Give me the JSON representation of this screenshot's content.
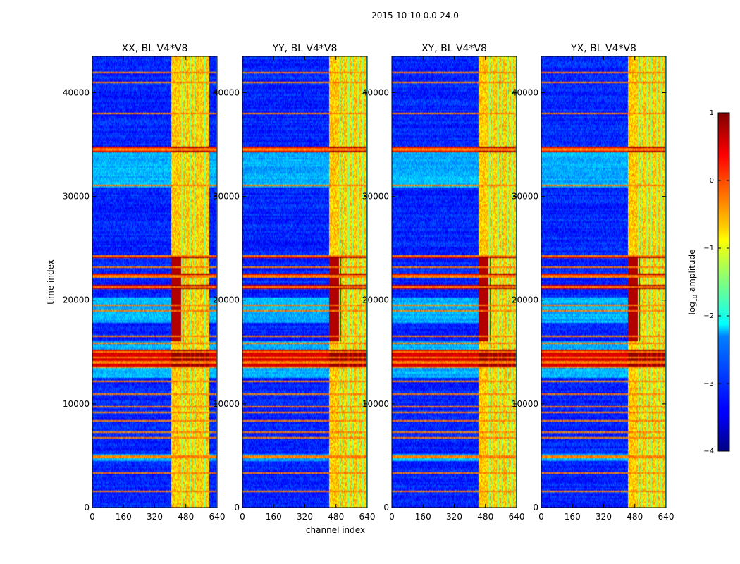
{
  "figure": {
    "suptitle": "2015-10-10 0.0-24.0",
    "xlabel": "channel index",
    "ylabel": "time index"
  },
  "chart_data": [
    {
      "type": "heatmap",
      "title": "XX, BL V4*V8",
      "xlim": [
        0,
        640
      ],
      "ylim": [
        0,
        43500
      ],
      "xticks": [
        0,
        160,
        320,
        480,
        640
      ],
      "yticks": [
        0,
        10000,
        20000,
        30000,
        40000
      ],
      "xticklabels": [
        "0",
        "160",
        "320",
        "480",
        "640"
      ],
      "yticklabels": [
        "0",
        "10000",
        "20000",
        "30000",
        "40000"
      ],
      "band_shift": 0,
      "xy_style": false
    },
    {
      "type": "heatmap",
      "title": "YY, BL V4*V8",
      "xlim": [
        0,
        640
      ],
      "ylim": [
        0,
        43500
      ],
      "xticks": [
        0,
        160,
        320,
        480,
        640
      ],
      "yticks": [
        0,
        10000,
        20000,
        30000,
        40000
      ],
      "xticklabels": [
        "0",
        "160",
        "320",
        "480",
        "640"
      ],
      "yticklabels": [
        "0",
        "10000",
        "20000",
        "30000",
        "40000"
      ],
      "band_shift": 40,
      "xy_style": false
    },
    {
      "type": "heatmap",
      "title": "XY, BL V4*V8",
      "xlim": [
        0,
        640
      ],
      "ylim": [
        0,
        43500
      ],
      "xticks": [
        0,
        160,
        320,
        480,
        640
      ],
      "yticks": [
        0,
        10000,
        20000,
        30000,
        40000
      ],
      "xticklabels": [
        "0",
        "160",
        "320",
        "480",
        "640"
      ],
      "yticklabels": [
        "0",
        "10000",
        "20000",
        "30000",
        "40000"
      ],
      "band_shift": 40,
      "xy_style": true
    },
    {
      "type": "heatmap",
      "title": "YX, BL V4*V8",
      "xlim": [
        0,
        640
      ],
      "ylim": [
        0,
        43500
      ],
      "xticks": [
        0,
        160,
        320,
        480,
        640
      ],
      "yticks": [
        0,
        10000,
        20000,
        30000,
        40000
      ],
      "xticklabels": [
        "0",
        "160",
        "320",
        "480",
        "640"
      ],
      "yticklabels": [
        "0",
        "10000",
        "20000",
        "30000",
        "40000"
      ],
      "band_shift": 40,
      "xy_style": true
    }
  ],
  "colorbar": {
    "label_prefix": "log",
    "label_sub": "10",
    "label_suffix": " amplitude",
    "range": [
      -4,
      1
    ],
    "ticks": [
      1,
      0,
      -1,
      -2,
      -3,
      -4
    ],
    "ticklabels": [
      "1",
      "0",
      "−1",
      "−2",
      "−3",
      "−4"
    ],
    "colormap": "jet"
  },
  "features": {
    "rfi_channel_bands": [
      [
        405,
        440
      ],
      [
        440,
        455
      ],
      [
        462,
        472
      ],
      [
        478,
        500
      ],
      [
        508,
        520
      ],
      [
        528,
        548
      ],
      [
        555,
        570
      ],
      [
        582,
        600
      ]
    ],
    "rfi_time_lines": [
      1600,
      3300,
      4800,
      5000,
      6700,
      7300,
      8400,
      9200,
      9700,
      11000,
      12200,
      13500,
      14000,
      14500,
      15000,
      15800,
      16500,
      19000,
      19500,
      21300,
      22200,
      22400,
      23200,
      24200,
      31000,
      34400,
      34600,
      38000,
      41000,
      42000
    ],
    "bright_time_spans": [
      [
        13400,
        15200
      ],
      [
        34200,
        34800
      ],
      [
        21100,
        21500
      ],
      [
        22100,
        22600
      ],
      [
        24100,
        24400
      ]
    ],
    "elevated_time_spans": [
      [
        30800,
        34200
      ],
      [
        17800,
        20200
      ],
      [
        4500,
        5200
      ],
      [
        12500,
        16000
      ]
    ]
  }
}
